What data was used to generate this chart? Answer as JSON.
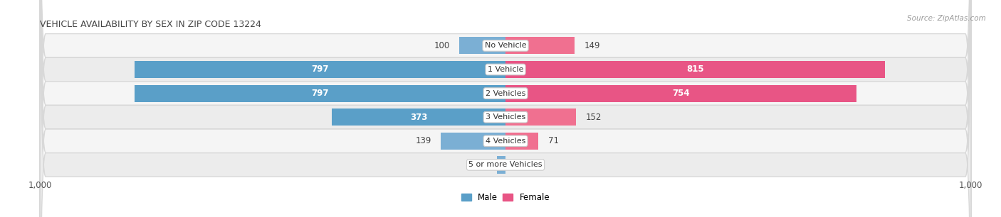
{
  "title": "VEHICLE AVAILABILITY BY SEX IN ZIP CODE 13224",
  "source": "Source: ZipAtlas.com",
  "categories": [
    "No Vehicle",
    "1 Vehicle",
    "2 Vehicles",
    "3 Vehicles",
    "4 Vehicles",
    "5 or more Vehicles"
  ],
  "male_values": [
    100,
    797,
    797,
    373,
    139,
    18
  ],
  "female_values": [
    149,
    815,
    754,
    152,
    71,
    0
  ],
  "male_color": "#7bafd4",
  "female_color": "#f07090",
  "male_color_strong": "#5a9fc8",
  "female_color_strong": "#e85585",
  "row_bg_light": "#f5f5f5",
  "row_bg_dark": "#ececec",
  "row_border": "#d8d8d8",
  "label_outside": "#444444",
  "label_inside": "#ffffff",
  "x_max": 1000,
  "x_min": -1000,
  "figsize": [
    14.06,
    3.06
  ],
  "dpi": 100,
  "threshold_inside": 200
}
